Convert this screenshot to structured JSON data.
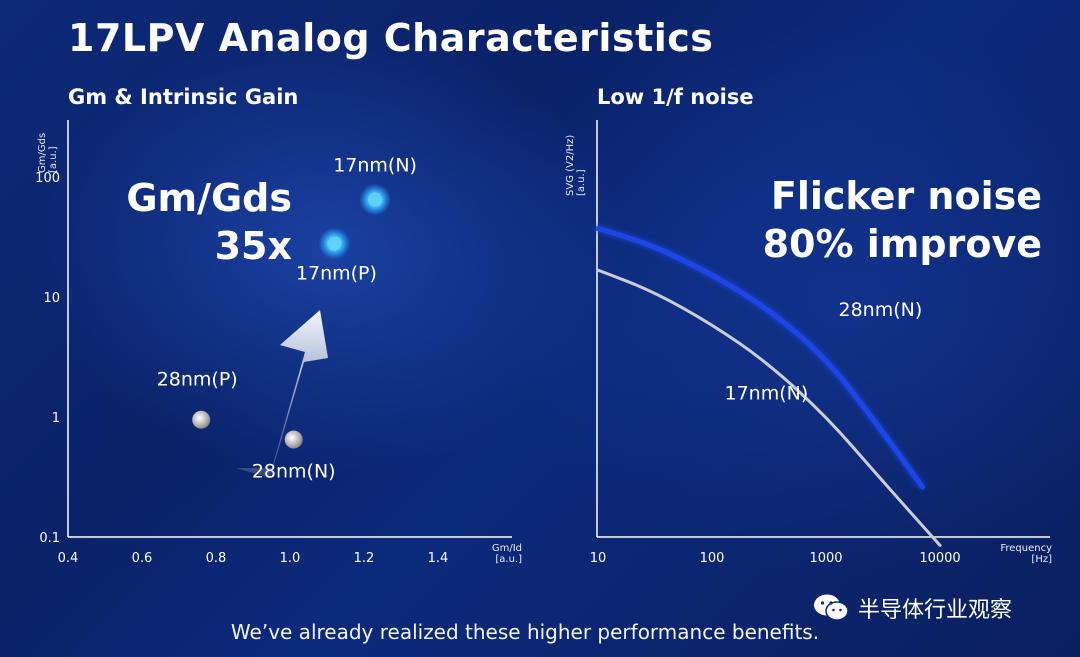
{
  "page_title": "17LPV Analog Characteristics",
  "footer_text": "We’ve already realized these higher performance benefits.",
  "watermark_text": "半导体行业观察",
  "colors": {
    "blue_series": "#1e46e6",
    "gray_series": "#c9cdd6",
    "dot_blue": "#2aa8ff",
    "dot_gray": "#c4c4c4"
  },
  "chart_data": [
    {
      "type": "scatter",
      "title": "Gm & Intrinsic Gain",
      "xlabel": "Gm/Id",
      "xunit": "[a.u.]",
      "ylabel": "Gm/Gds",
      "yunit": "[a.u.]",
      "xlim": [
        0.4,
        1.6
      ],
      "ylim": [
        0.1,
        300
      ],
      "yscale": "log",
      "xticks": [
        "0.4",
        "0.6",
        "0.8",
        "1.0",
        "1.2",
        "1.4"
      ],
      "yticks": [
        "0.1",
        "1",
        "10",
        "100"
      ],
      "points": [
        {
          "name": "28nm(P)",
          "x": 0.76,
          "y": 0.95,
          "color": "gray"
        },
        {
          "name": "28nm(N)",
          "x": 1.01,
          "y": 0.65,
          "color": "gray"
        },
        {
          "name": "17nm(P)",
          "x": 1.12,
          "y": 28,
          "color": "blue"
        },
        {
          "name": "17nm(N)",
          "x": 1.23,
          "y": 65,
          "color": "blue"
        }
      ],
      "annotation": [
        "Gm/Gds",
        "35x"
      ]
    },
    {
      "type": "line",
      "title": "Low 1/f noise",
      "xlabel": "Frequency",
      "xunit": "[Hz]",
      "ylabel": "SVG (V2/Hz)",
      "yunit": "[a.u.]",
      "xscale": "log",
      "xlim": [
        10,
        10000
      ],
      "xticks": [
        "10",
        "100",
        "1000",
        "10000"
      ],
      "series": [
        {
          "name": "28nm(N)",
          "color": "blue",
          "x": [
            10,
            30,
            100,
            300,
            1000,
            3000,
            7000
          ],
          "y": [
            0.74,
            0.7,
            0.63,
            0.55,
            0.43,
            0.26,
            0.12
          ]
        },
        {
          "name": "17nm(N)",
          "color": "gray",
          "x": [
            10,
            30,
            100,
            300,
            1000,
            3000,
            10000
          ],
          "y": [
            0.64,
            0.59,
            0.51,
            0.42,
            0.29,
            0.14,
            -0.02
          ]
        }
      ],
      "annotation": [
        "Flicker noise",
        "80% improve"
      ]
    }
  ]
}
